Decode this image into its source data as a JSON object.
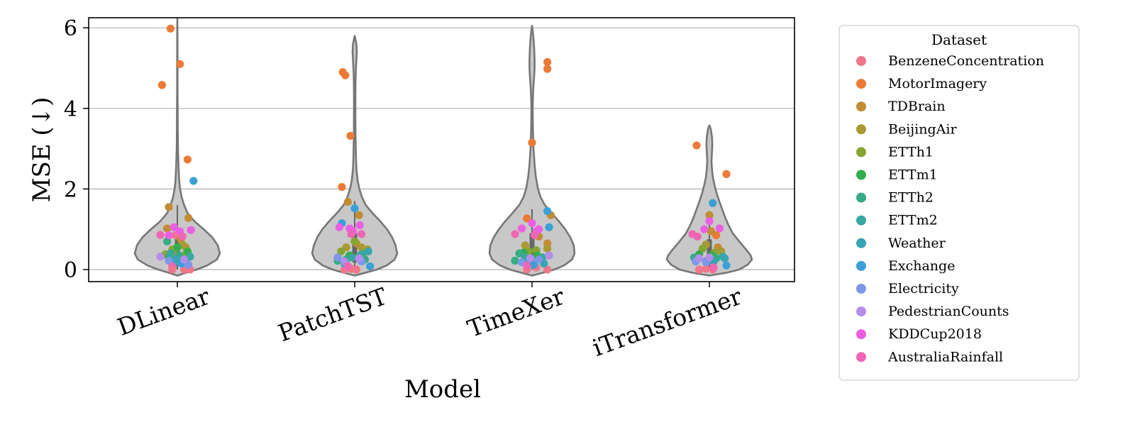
{
  "chart_data": {
    "type": "violin+strip",
    "xlabel": "Model",
    "ylabel": "MSE (↓)",
    "ylim": [
      -0.3,
      6.25
    ],
    "yticks": [
      0,
      2,
      4,
      6
    ],
    "grid": "horizontal",
    "categories": [
      "DLinear",
      "PatchTST",
      "TimeXer",
      "iTransformer"
    ],
    "legend": {
      "title": "Dataset",
      "placement": "outside-right",
      "entries": [
        {
          "name": "BenzeneConcentration",
          "color": "#f0778a"
        },
        {
          "name": "MotorImagery",
          "color": "#ec7a34"
        },
        {
          "name": "TDBrain",
          "color": "#c28c33"
        },
        {
          "name": "BeijingAir",
          "color": "#a99a33"
        },
        {
          "name": "ETTh1",
          "color": "#86a533"
        },
        {
          "name": "ETTm1",
          "color": "#33ad4e"
        },
        {
          "name": "ETTh2",
          "color": "#35ab86"
        },
        {
          "name": "ETTm2",
          "color": "#37a8a0"
        },
        {
          "name": "Weather",
          "color": "#38a4b4"
        },
        {
          "name": "Exchange",
          "color": "#3ba0d6"
        },
        {
          "name": "Electricity",
          "color": "#7e97e8"
        },
        {
          "name": "PedestrianCounts",
          "color": "#b68cec"
        },
        {
          "name": "KDDCup2018",
          "color": "#ec5fe3"
        },
        {
          "name": "AustraliaRainfall",
          "color": "#f066b5"
        }
      ]
    },
    "violins": [
      {
        "model": "DLinear",
        "max": 6.3,
        "widths": [
          [
            6.3,
            0.0
          ],
          [
            5.8,
            0.003
          ],
          [
            5.0,
            0.005
          ],
          [
            4.5,
            0.005
          ],
          [
            4.0,
            0.008
          ],
          [
            3.5,
            0.01
          ],
          [
            3.0,
            0.015
          ],
          [
            2.5,
            0.03
          ],
          [
            2.2,
            0.045
          ],
          [
            2.0,
            0.065
          ],
          [
            1.8,
            0.1
          ],
          [
            1.6,
            0.16
          ],
          [
            1.4,
            0.24
          ],
          [
            1.2,
            0.4
          ],
          [
            1.0,
            0.62
          ],
          [
            0.8,
            0.82
          ],
          [
            0.6,
            0.95
          ],
          [
            0.4,
            1.0
          ],
          [
            0.25,
            0.93
          ],
          [
            0.1,
            0.7
          ],
          [
            0.0,
            0.45
          ],
          [
            -0.08,
            0.2
          ],
          [
            -0.15,
            0.0
          ]
        ]
      },
      {
        "model": "PatchTST",
        "max": 5.8,
        "widths": [
          [
            5.8,
            0.0
          ],
          [
            5.6,
            0.04
          ],
          [
            5.4,
            0.05
          ],
          [
            5.2,
            0.04
          ],
          [
            5.0,
            0.03
          ],
          [
            4.7,
            0.02
          ],
          [
            4.3,
            0.016
          ],
          [
            4.0,
            0.016
          ],
          [
            3.5,
            0.018
          ],
          [
            3.2,
            0.022
          ],
          [
            2.8,
            0.03
          ],
          [
            2.5,
            0.04
          ],
          [
            2.2,
            0.07
          ],
          [
            2.0,
            0.11
          ],
          [
            1.8,
            0.17
          ],
          [
            1.6,
            0.26
          ],
          [
            1.4,
            0.42
          ],
          [
            1.2,
            0.6
          ],
          [
            1.0,
            0.76
          ],
          [
            0.8,
            0.88
          ],
          [
            0.6,
            0.96
          ],
          [
            0.4,
            1.0
          ],
          [
            0.25,
            0.94
          ],
          [
            0.1,
            0.75
          ],
          [
            0.0,
            0.52
          ],
          [
            -0.08,
            0.25
          ],
          [
            -0.15,
            0.0
          ]
        ]
      },
      {
        "model": "TimeXer",
        "max": 6.05,
        "widths": [
          [
            6.05,
            0.0
          ],
          [
            5.8,
            0.03
          ],
          [
            5.5,
            0.05
          ],
          [
            5.2,
            0.06
          ],
          [
            5.0,
            0.06
          ],
          [
            4.8,
            0.05
          ],
          [
            4.5,
            0.03
          ],
          [
            4.2,
            0.018
          ],
          [
            4.0,
            0.015
          ],
          [
            3.5,
            0.02
          ],
          [
            3.0,
            0.035
          ],
          [
            2.6,
            0.06
          ],
          [
            2.3,
            0.09
          ],
          [
            2.0,
            0.14
          ],
          [
            1.8,
            0.2
          ],
          [
            1.6,
            0.3
          ],
          [
            1.4,
            0.46
          ],
          [
            1.2,
            0.63
          ],
          [
            1.0,
            0.78
          ],
          [
            0.8,
            0.9
          ],
          [
            0.6,
            0.98
          ],
          [
            0.4,
            1.0
          ],
          [
            0.25,
            0.94
          ],
          [
            0.1,
            0.75
          ],
          [
            0.0,
            0.52
          ],
          [
            -0.08,
            0.25
          ],
          [
            -0.15,
            0.0
          ]
        ]
      },
      {
        "model": "iTransformer",
        "max": 3.58,
        "widths": [
          [
            3.58,
            0.0
          ],
          [
            3.5,
            0.03
          ],
          [
            3.3,
            0.06
          ],
          [
            3.1,
            0.07
          ],
          [
            2.9,
            0.06
          ],
          [
            2.7,
            0.05
          ],
          [
            2.5,
            0.06
          ],
          [
            2.3,
            0.08
          ],
          [
            2.1,
            0.12
          ],
          [
            1.9,
            0.17
          ],
          [
            1.7,
            0.23
          ],
          [
            1.5,
            0.3
          ],
          [
            1.3,
            0.37
          ],
          [
            1.1,
            0.45
          ],
          [
            0.9,
            0.55
          ],
          [
            0.7,
            0.7
          ],
          [
            0.5,
            0.86
          ],
          [
            0.35,
            0.97
          ],
          [
            0.25,
            1.0
          ],
          [
            0.12,
            0.9
          ],
          [
            0.0,
            0.7
          ],
          [
            -0.08,
            0.4
          ],
          [
            -0.15,
            0.0
          ]
        ]
      }
    ],
    "boxes": [
      {
        "model": "DLinear",
        "q1": 0.15,
        "median": 0.4,
        "q3": 0.75,
        "whisker_low": 0.0,
        "whisker_high": 1.6
      },
      {
        "model": "PatchTST",
        "q1": 0.18,
        "median": 0.45,
        "q3": 0.9,
        "whisker_low": 0.0,
        "whisker_high": 1.7
      },
      {
        "model": "TimeXer",
        "q1": 0.15,
        "median": 0.45,
        "q3": 0.9,
        "whisker_low": 0.0,
        "whisker_high": 1.5
      },
      {
        "model": "iTransformer",
        "q1": 0.15,
        "median": 0.35,
        "q3": 0.75,
        "whisker_low": 0.0,
        "whisker_high": 1.45
      }
    ],
    "points": {
      "DLinear": [
        [
          0,
          -0.02,
          0.85
        ],
        [
          0,
          0.08,
          0.0
        ],
        [
          0,
          0.15,
          0.0
        ],
        [
          1,
          -0.08,
          5.98
        ],
        [
          1,
          0.03,
          5.1
        ],
        [
          1,
          -0.18,
          4.58
        ],
        [
          1,
          0.12,
          2.73
        ],
        [
          2,
          -0.1,
          1.55
        ],
        [
          2,
          0.13,
          1.28
        ],
        [
          2,
          0.04,
          0.75
        ],
        [
          2,
          -0.12,
          1.02
        ],
        [
          3,
          0.06,
          0.62
        ],
        [
          3,
          -0.05,
          0.42
        ],
        [
          3,
          0.1,
          0.55
        ],
        [
          4,
          -0.06,
          0.5
        ],
        [
          4,
          0.08,
          0.35
        ],
        [
          4,
          -0.14,
          0.38
        ],
        [
          5,
          -0.1,
          0.3
        ],
        [
          5,
          0.0,
          0.55
        ],
        [
          5,
          0.12,
          0.45
        ],
        [
          6,
          -0.12,
          0.7
        ],
        [
          6,
          0.02,
          0.35
        ],
        [
          6,
          -0.03,
          0.2
        ],
        [
          7,
          0.06,
          0.25
        ],
        [
          7,
          -0.08,
          0.4
        ],
        [
          7,
          0.15,
          0.32
        ],
        [
          8,
          -0.02,
          0.25
        ],
        [
          8,
          0.1,
          0.18
        ],
        [
          9,
          0.19,
          2.2
        ],
        [
          9,
          -0.05,
          0.1
        ],
        [
          9,
          0.05,
          0.15
        ],
        [
          10,
          -0.1,
          0.22
        ],
        [
          10,
          0.13,
          0.12
        ],
        [
          11,
          -0.2,
          0.32
        ],
        [
          11,
          0.08,
          0.25
        ],
        [
          12,
          -0.04,
          1.05
        ],
        [
          12,
          0.03,
          0.95
        ],
        [
          12,
          -0.1,
          0.85
        ],
        [
          12,
          0.16,
          0.98
        ],
        [
          13,
          -0.2,
          0.86
        ],
        [
          13,
          0.06,
          0.82
        ],
        [
          13,
          -0.06,
          0.08
        ],
        [
          0,
          -0.06,
          0.0
        ]
      ],
      "PatchTST": [
        [
          0,
          -0.12,
          0.0
        ],
        [
          0,
          0.02,
          0.0
        ],
        [
          0,
          -0.04,
          0.02
        ],
        [
          1,
          -0.14,
          4.9
        ],
        [
          1,
          -0.11,
          4.82
        ],
        [
          1,
          -0.05,
          3.32
        ],
        [
          1,
          -0.15,
          2.05
        ],
        [
          2,
          -0.08,
          1.68
        ],
        [
          2,
          0.05,
          1.35
        ],
        [
          2,
          0.02,
          0.65
        ],
        [
          3,
          -0.1,
          0.55
        ],
        [
          3,
          0.08,
          0.55
        ],
        [
          3,
          0.15,
          0.5
        ],
        [
          4,
          -0.16,
          0.45
        ],
        [
          4,
          0.0,
          0.7
        ],
        [
          4,
          0.1,
          0.4
        ],
        [
          5,
          -0.06,
          0.35
        ],
        [
          5,
          0.04,
          0.3
        ],
        [
          6,
          -0.1,
          0.25
        ],
        [
          6,
          0.12,
          0.25
        ],
        [
          6,
          -0.2,
          0.22
        ],
        [
          7,
          0.08,
          0.38
        ],
        [
          7,
          -0.03,
          0.3
        ],
        [
          8,
          0.16,
          0.45
        ],
        [
          8,
          -0.12,
          0.15
        ],
        [
          9,
          0.0,
          1.52
        ],
        [
          9,
          -0.15,
          1.15
        ],
        [
          9,
          0.18,
          0.08
        ],
        [
          10,
          0.08,
          0.2
        ],
        [
          10,
          -0.2,
          0.3
        ],
        [
          11,
          -0.12,
          0.2
        ],
        [
          11,
          0.05,
          0.28
        ],
        [
          12,
          -0.06,
          1.02
        ],
        [
          12,
          -0.02,
          0.95
        ],
        [
          12,
          0.06,
          1.1
        ],
        [
          12,
          -0.18,
          1.05
        ],
        [
          13,
          -0.04,
          0.88
        ],
        [
          13,
          0.08,
          0.88
        ],
        [
          13,
          -0.08,
          0.08
        ]
      ],
      "TimeXer": [
        [
          0,
          -0.06,
          0.0
        ],
        [
          0,
          0.18,
          0.0
        ],
        [
          0,
          0.05,
          0.05
        ],
        [
          1,
          0.18,
          5.15
        ],
        [
          1,
          0.18,
          4.98
        ],
        [
          1,
          0.0,
          3.15
        ],
        [
          1,
          -0.06,
          1.27
        ],
        [
          2,
          0.22,
          1.35
        ],
        [
          2,
          0.08,
          0.82
        ],
        [
          2,
          0.18,
          0.65
        ],
        [
          3,
          0.18,
          0.52
        ],
        [
          3,
          -0.08,
          0.6
        ],
        [
          4,
          -0.04,
          0.45
        ],
        [
          4,
          0.05,
          0.48
        ],
        [
          5,
          -0.1,
          0.42
        ],
        [
          5,
          0.06,
          0.35
        ],
        [
          6,
          -0.15,
          0.4
        ],
        [
          6,
          -0.2,
          0.22
        ],
        [
          7,
          0.12,
          0.3
        ],
        [
          7,
          -0.08,
          0.3
        ],
        [
          8,
          0.14,
          0.15
        ],
        [
          8,
          -0.03,
          0.2
        ],
        [
          9,
          0.18,
          1.45
        ],
        [
          9,
          0.2,
          1.05
        ],
        [
          9,
          0.02,
          0.12
        ],
        [
          10,
          -0.12,
          0.18
        ],
        [
          10,
          0.08,
          0.25
        ],
        [
          11,
          -0.02,
          0.28
        ],
        [
          11,
          0.2,
          0.35
        ],
        [
          12,
          -0.12,
          1.02
        ],
        [
          12,
          0.05,
          0.95
        ],
        [
          12,
          0.0,
          1.15
        ],
        [
          12,
          0.08,
          1.0
        ],
        [
          13,
          -0.2,
          0.88
        ],
        [
          13,
          0.03,
          0.85
        ],
        [
          13,
          -0.06,
          0.1
        ]
      ],
      "iTransformer": [
        [
          0,
          -0.12,
          0.0
        ],
        [
          0,
          0.04,
          0.0
        ],
        [
          0,
          -0.04,
          0.02
        ],
        [
          1,
          -0.15,
          3.08
        ],
        [
          1,
          0.2,
          2.37
        ],
        [
          1,
          0.08,
          0.85
        ],
        [
          2,
          0.0,
          1.35
        ],
        [
          2,
          0.02,
          0.95
        ],
        [
          2,
          0.1,
          0.55
        ],
        [
          3,
          -0.04,
          0.62
        ],
        [
          3,
          0.14,
          0.45
        ],
        [
          4,
          -0.08,
          0.52
        ],
        [
          4,
          0.06,
          0.42
        ],
        [
          5,
          -0.12,
          0.38
        ],
        [
          5,
          0.03,
          0.35
        ],
        [
          6,
          -0.18,
          0.3
        ],
        [
          6,
          0.08,
          0.28
        ],
        [
          7,
          0.16,
          0.32
        ],
        [
          7,
          -0.04,
          0.2
        ],
        [
          8,
          0.18,
          0.28
        ],
        [
          8,
          0.05,
          0.2
        ],
        [
          9,
          0.04,
          1.65
        ],
        [
          9,
          0.2,
          0.1
        ],
        [
          10,
          -0.16,
          0.2
        ],
        [
          10,
          -0.04,
          0.18
        ],
        [
          11,
          -0.12,
          0.28
        ],
        [
          11,
          0.0,
          0.3
        ],
        [
          12,
          0.0,
          1.2
        ],
        [
          12,
          0.12,
          1.02
        ],
        [
          12,
          -0.06,
          1.0
        ],
        [
          13,
          -0.2,
          0.88
        ],
        [
          13,
          -0.14,
          0.82
        ],
        [
          13,
          0.05,
          0.05
        ]
      ]
    }
  }
}
